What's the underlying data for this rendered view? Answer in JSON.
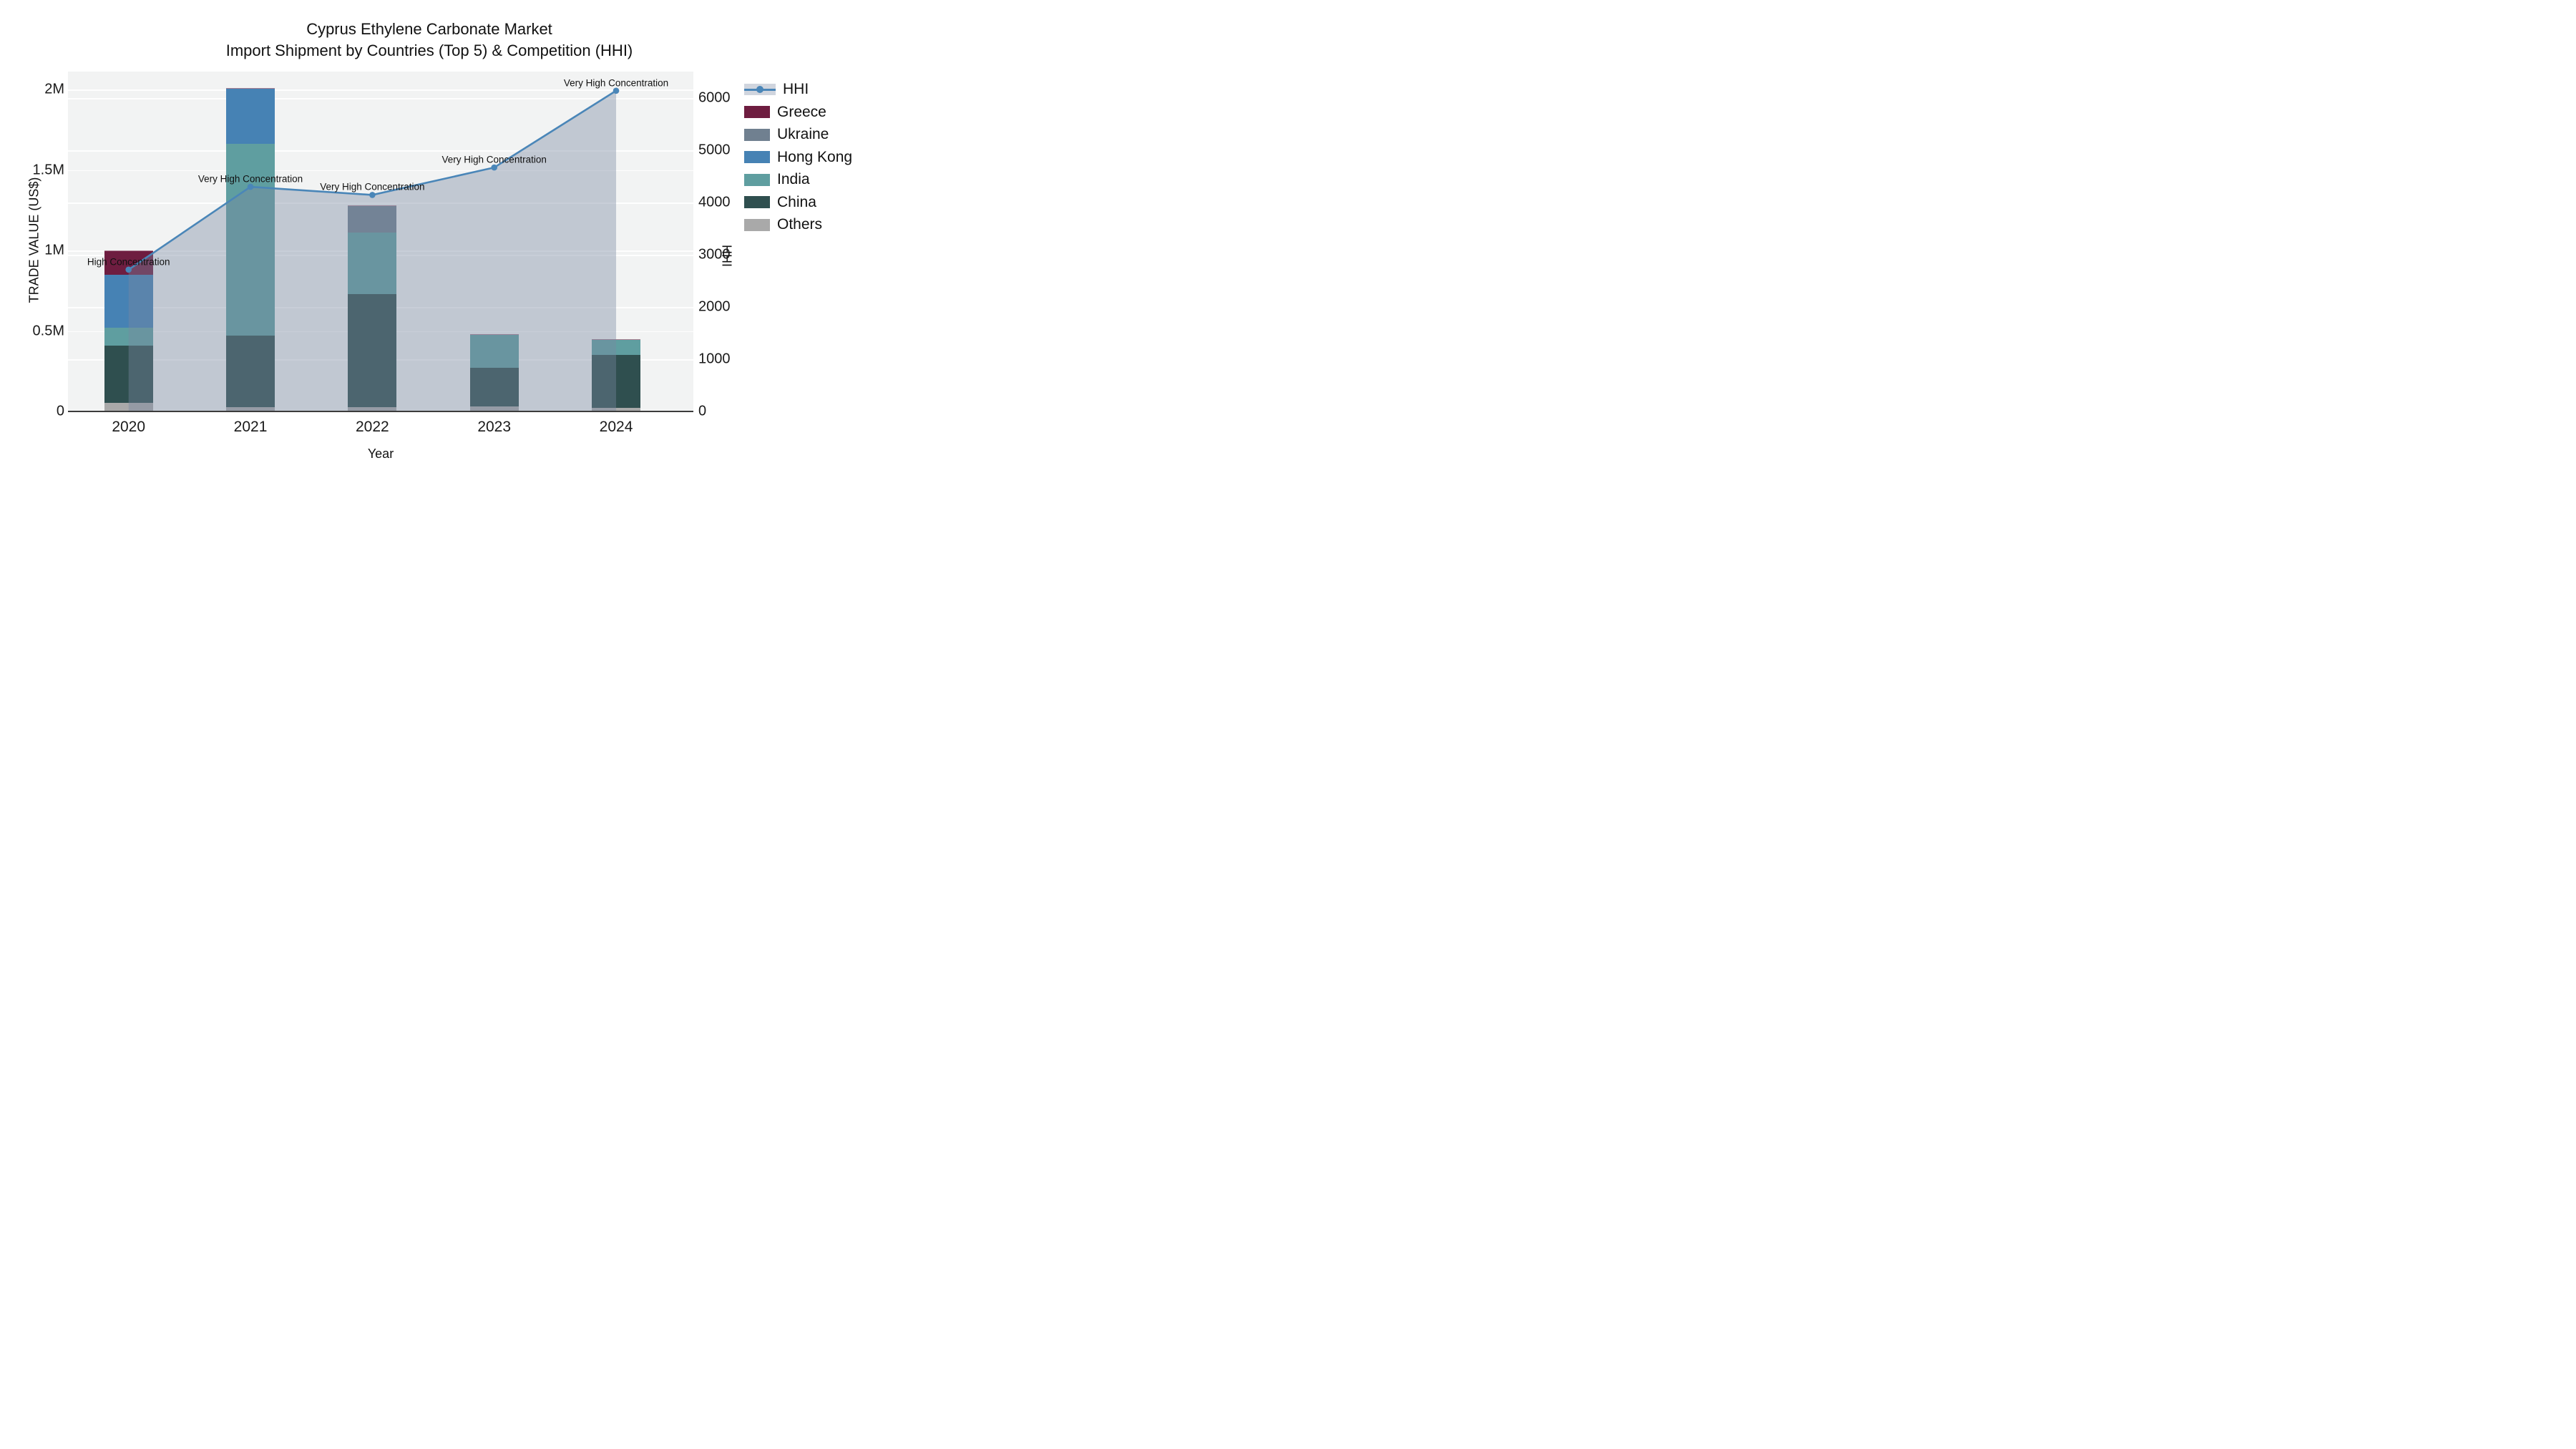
{
  "title": {
    "line1": "Cyprus Ethylene Carbonate Market",
    "line2": "Import Shipment by Countries (Top 5) & Competition (HHI)"
  },
  "chart_data": {
    "type": "bar+line",
    "title": "Cyprus Ethylene Carbonate Market Import Shipment by Countries (Top 5) & Competition (HHI)",
    "categories": [
      "2020",
      "2021",
      "2022",
      "2023",
      "2024"
    ],
    "xlabel": "Year",
    "ylabel_left": "TRADE VALUE (US$)",
    "ylabel_right": "HHI",
    "ylim_left_musd": [
      0,
      2.11
    ],
    "ylim_right_hhi": [
      0,
      6510
    ],
    "grid": true,
    "legend_position": "right",
    "bar_series_bottom_to_top": [
      {
        "name": "Others",
        "color": "#a9a9a9",
        "values_musd": [
          0.053,
          0.028,
          0.025,
          0.033,
          0.021
        ]
      },
      {
        "name": "China",
        "color": "#2f4f4f",
        "values_musd": [
          0.358,
          0.442,
          0.703,
          0.24,
          0.332
        ]
      },
      {
        "name": "India",
        "color": "#5f9ea0",
        "values_musd": [
          0.108,
          1.193,
          0.383,
          0.203,
          0.093
        ]
      },
      {
        "name": "Hong Kong",
        "color": "#4682b4",
        "values_musd": [
          0.328,
          0.343,
          0,
          0,
          0
        ]
      },
      {
        "name": "Ukraine",
        "color": "#708090",
        "values_musd": [
          0,
          0,
          0.165,
          0,
          0
        ]
      },
      {
        "name": "Greece",
        "color": "#6e1d40",
        "values_musd": [
          0.15,
          0,
          0,
          0,
          0
        ]
      }
    ],
    "bar_totals_musd": [
      1.0,
      2.01,
      1.28,
      0.48,
      0.45
    ],
    "line_series": {
      "name": "HHI",
      "color": "#4a86b8",
      "fill_color": "rgba(119,136,160,0.40)",
      "values_hhi": [
        2715,
        4300,
        4145,
        4670,
        6140
      ]
    },
    "annotations": [
      {
        "category": "2020",
        "text": "High Concentration"
      },
      {
        "category": "2021",
        "text": "Very High Concentration"
      },
      {
        "category": "2022",
        "text": "Very High Concentration"
      },
      {
        "category": "2023",
        "text": "Very High Concentration"
      },
      {
        "category": "2024",
        "text": "Very High Concentration"
      }
    ],
    "yticks_left": [
      "0",
      "0.5M",
      "1M",
      "1.5M",
      "2M"
    ],
    "yticks_left_values_musd": [
      0,
      0.5,
      1.0,
      1.5,
      2.0
    ],
    "yticks_right": [
      "0",
      "1000",
      "2000",
      "3000",
      "4000",
      "5000",
      "6000"
    ],
    "yticks_right_values": [
      0,
      1000,
      2000,
      3000,
      4000,
      5000,
      6000
    ],
    "legend": [
      {
        "label": "HHI",
        "swatch": "line",
        "color": "#4a86b8"
      },
      {
        "label": "Greece",
        "swatch": "box",
        "color": "#6e1d40"
      },
      {
        "label": "Ukraine",
        "swatch": "box",
        "color": "#708090"
      },
      {
        "label": "Hong Kong",
        "swatch": "box",
        "color": "#4682b4"
      },
      {
        "label": "India",
        "swatch": "box",
        "color": "#5f9ea0"
      },
      {
        "label": "China",
        "swatch": "box",
        "color": "#2f4f4f"
      },
      {
        "label": "Others",
        "swatch": "box",
        "color": "#a9a9a9"
      }
    ]
  },
  "colors": {
    "plot_background": "#f2f3f3",
    "gridline": "#ffffff",
    "axis_line": "#3c3c3c",
    "hhi_line": "#4a86b8",
    "hhi_area": "rgba(119,136,160,0.40)"
  }
}
